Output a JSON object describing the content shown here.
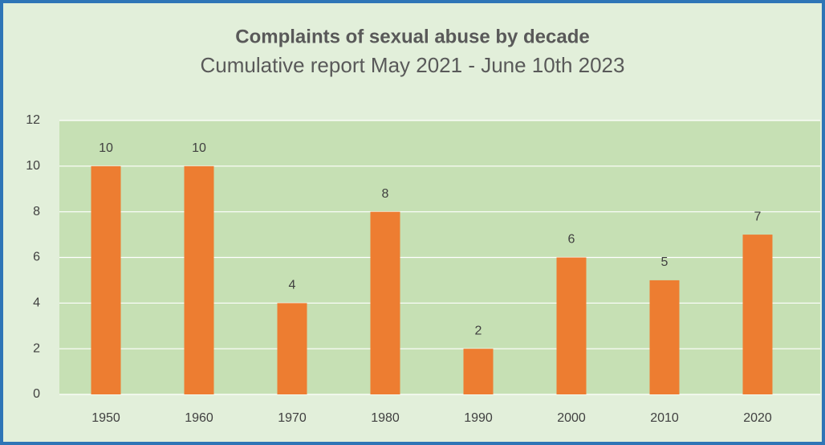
{
  "chart_data": {
    "type": "bar",
    "title": "Complaints of sexual abuse by decade",
    "subtitle": "Cumulative report May 2021 - June 10th 2023",
    "categories": [
      "1950",
      "1960",
      "1970",
      "1980",
      "1990",
      "2000",
      "2010",
      "2020"
    ],
    "values": [
      10,
      10,
      4,
      8,
      2,
      6,
      5,
      7
    ],
    "color": "#ed7d31",
    "ylim": [
      0,
      12
    ],
    "yticks": [
      0,
      2,
      4,
      6,
      8,
      10,
      12
    ],
    "grid": true,
    "data_labels": true
  }
}
